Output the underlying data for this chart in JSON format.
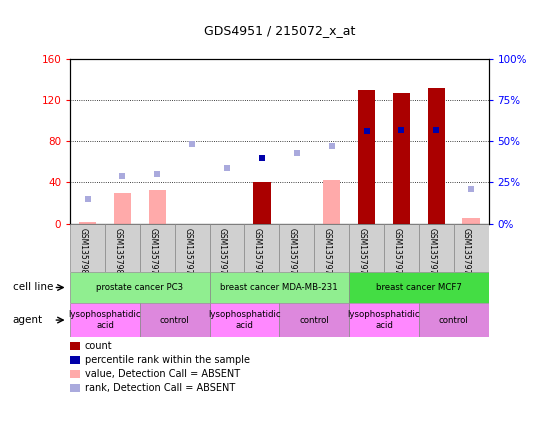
{
  "title": "GDS4951 / 215072_x_at",
  "samples": [
    "GSM1357980",
    "GSM1357981",
    "GSM1357978",
    "GSM1357979",
    "GSM1357972",
    "GSM1357973",
    "GSM1357970",
    "GSM1357971",
    "GSM1357976",
    "GSM1357977",
    "GSM1357974",
    "GSM1357975"
  ],
  "count_values": [
    2,
    30,
    33,
    0,
    0,
    40,
    0,
    42,
    130,
    127,
    132,
    5
  ],
  "count_is_dark": [
    false,
    false,
    false,
    false,
    false,
    true,
    false,
    false,
    true,
    true,
    true,
    false
  ],
  "rank_values": [
    15,
    29,
    30,
    48,
    34,
    40,
    43,
    47,
    56,
    57,
    57,
    21
  ],
  "rank_is_dark": [
    false,
    false,
    false,
    false,
    false,
    true,
    false,
    false,
    true,
    true,
    true,
    false
  ],
  "rank_absent": [
    true,
    true,
    true,
    true,
    true,
    false,
    true,
    true,
    false,
    false,
    false,
    true
  ],
  "count_absent": [
    true,
    true,
    true,
    true,
    true,
    false,
    true,
    true,
    false,
    false,
    false,
    true
  ],
  "cell_line_groups": [
    {
      "label": "prostate cancer PC3",
      "start": 0,
      "end": 4,
      "color": "#90EE90"
    },
    {
      "label": "breast cancer MDA-MB-231",
      "start": 4,
      "end": 8,
      "color": "#90EE90"
    },
    {
      "label": "breast cancer MCF7",
      "start": 8,
      "end": 12,
      "color": "#44DD44"
    }
  ],
  "agent_groups": [
    {
      "label": "lysophosphatidic\nacid",
      "start": 0,
      "end": 2,
      "color": "#FF88FF"
    },
    {
      "label": "control",
      "start": 2,
      "end": 4,
      "color": "#DD88DD"
    },
    {
      "label": "lysophosphatidic\nacid",
      "start": 4,
      "end": 6,
      "color": "#FF88FF"
    },
    {
      "label": "control",
      "start": 6,
      "end": 8,
      "color": "#DD88DD"
    },
    {
      "label": "lysophosphatidic\nacid",
      "start": 8,
      "end": 10,
      "color": "#FF88FF"
    },
    {
      "label": "control",
      "start": 10,
      "end": 12,
      "color": "#DD88DD"
    }
  ],
  "ylim_left": [
    0,
    160
  ],
  "ylim_right": [
    0,
    100
  ],
  "yticks_left": [
    0,
    40,
    80,
    120,
    160
  ],
  "ytick_labels_left": [
    "0",
    "40",
    "80",
    "120",
    "160"
  ],
  "yticks_right": [
    0,
    25,
    50,
    75,
    100
  ],
  "ytick_labels_right": [
    "0%",
    "25%",
    "50%",
    "75%",
    "100%"
  ],
  "count_color_dark": "#AA0000",
  "count_color_light": "#FFAAAA",
  "rank_color_dark": "#0000AA",
  "rank_color_light": "#AAAADD",
  "legend_items": [
    {
      "color": "#AA0000",
      "label": "count"
    },
    {
      "color": "#0000AA",
      "label": "percentile rank within the sample"
    },
    {
      "color": "#FFAAAA",
      "label": "value, Detection Call = ABSENT"
    },
    {
      "color": "#AAAADD",
      "label": "rank, Detection Call = ABSENT"
    }
  ],
  "bar_width": 0.5,
  "marker_size": 5
}
